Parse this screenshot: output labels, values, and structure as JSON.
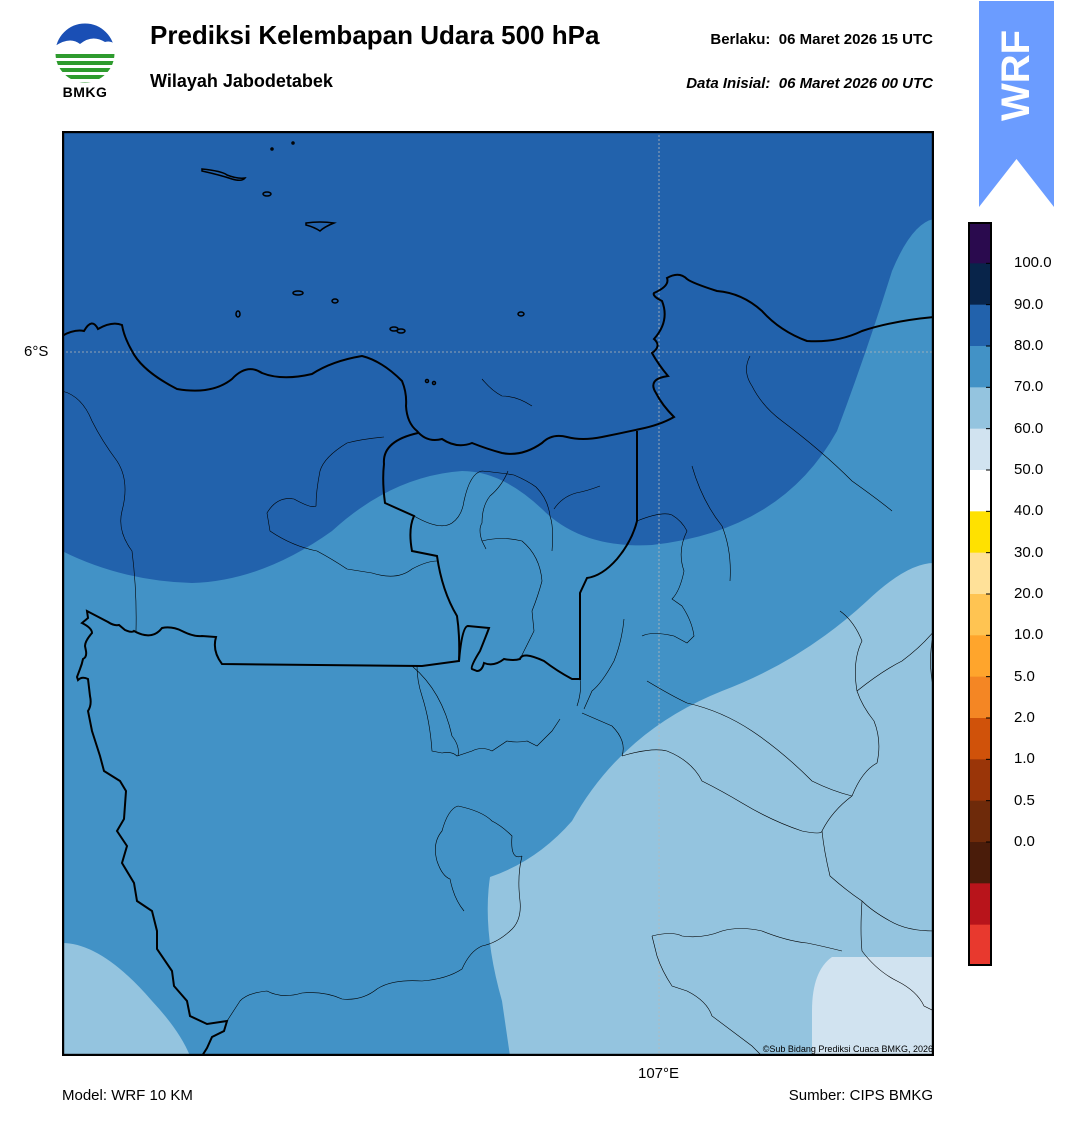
{
  "header": {
    "title": "Prediksi Kelembapan Udara 500 hPa",
    "subtitle": "Wilayah Jabodetabek",
    "valid_label": "Berlaku:",
    "valid_time": "06 Maret 2026 15 UTC",
    "init_label": "Data Inisial:",
    "init_time": "06 Maret 2026 00 UTC",
    "logo_text": "BMKG"
  },
  "badge": {
    "text": "WRF",
    "color": "#6b9cff"
  },
  "map": {
    "lat_label": "6°S",
    "lon_label": "107°E",
    "copyright": "©Sub Bidang Prediksi Cuaca BMKG, 2026",
    "fill_colors": {
      "range_80_90": "#2262ac",
      "range_70_80": "#4292c6",
      "range_60_70": "#94c4df",
      "range_50_60": "#d1e3f0"
    },
    "gridline_color": "#b8b8b8"
  },
  "colorbar": {
    "ticks": [
      "100.0",
      "90.0",
      "80.0",
      "70.0",
      "60.0",
      "50.0",
      "40.0",
      "30.0",
      "20.0",
      "10.0",
      "5.0",
      "2.0",
      "1.0",
      "0.5",
      "0.0"
    ],
    "colors": [
      "#2a0a4e",
      "#08244a",
      "#2262ac",
      "#4292c6",
      "#94c4df",
      "#d1e3f0",
      "#ffffff",
      "#ffe100",
      "#ffe199",
      "#ffc452",
      "#ffa52c",
      "#f48624",
      "#d0520a",
      "#9a3508",
      "#6e2a0a",
      "#4a1c0a",
      "#b8141b",
      "#e8392e"
    ]
  },
  "footer": {
    "model": "Model: WRF 10 KM",
    "source": "Sumber: CIPS BMKG"
  }
}
